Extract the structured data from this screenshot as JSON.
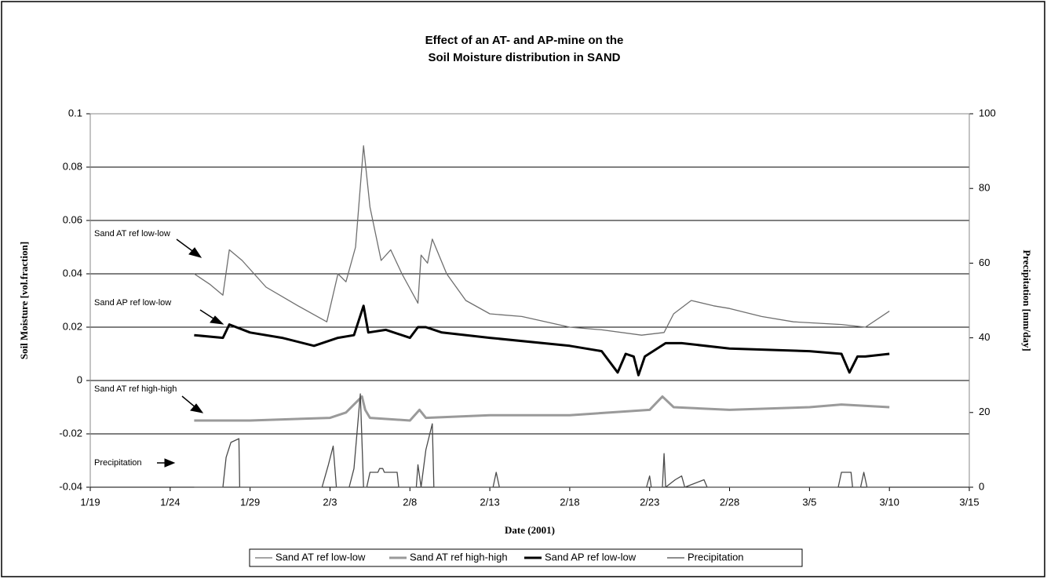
{
  "chart_data": {
    "type": "line",
    "title": [
      "Effect of an AT- and AP-mine on the",
      "Soil Moisture distribution in SAND"
    ],
    "x_label": "Date (2001)",
    "y_label": "Soil Moisture [vol.fraction]",
    "y2_label": "Precipitation [mm/day]",
    "xlim": [
      0,
      55
    ],
    "xticks": [
      {
        "value": 0,
        "label": "1/19"
      },
      {
        "value": 5,
        "label": "1/24"
      },
      {
        "value": 10,
        "label": "1/29"
      },
      {
        "value": 15,
        "label": "2/3"
      },
      {
        "value": 20,
        "label": "2/8"
      },
      {
        "value": 25,
        "label": "2/13"
      },
      {
        "value": 30,
        "label": "2/18"
      },
      {
        "value": 35,
        "label": "2/23"
      },
      {
        "value": 40,
        "label": "2/28"
      },
      {
        "value": 45,
        "label": "3/5"
      },
      {
        "value": 50,
        "label": "3/10"
      },
      {
        "value": 55,
        "label": "3/15"
      }
    ],
    "ylim": [
      -0.04,
      0.1
    ],
    "yticks": [
      -0.04,
      -0.02,
      0,
      0.02,
      0.04,
      0.06,
      0.08,
      0.1
    ],
    "y2lim": [
      0,
      100
    ],
    "y2ticks": [
      0,
      20,
      40,
      60,
      80,
      100
    ],
    "grid": true,
    "series": [
      {
        "name": "Sand AT ref low-low",
        "color": "#6f6f6f",
        "width": 1.3,
        "x": [
          6.5,
          7.5,
          8.3,
          8.7,
          9.5,
          11,
          13,
          14.8,
          15.5,
          16,
          16.6,
          17.1,
          17.5,
          18.2,
          18.8,
          19.5,
          20.5,
          20.7,
          21.1,
          21.4,
          22.3,
          23.5,
          25,
          27,
          30,
          32,
          34.5,
          35.9,
          36.5,
          37.6,
          39,
          40,
          42,
          44,
          47,
          48.5,
          50
        ],
        "values": [
          0.04,
          0.036,
          0.032,
          0.049,
          0.045,
          0.035,
          0.028,
          0.022,
          0.04,
          0.037,
          0.05,
          0.088,
          0.065,
          0.045,
          0.049,
          0.04,
          0.029,
          0.047,
          0.044,
          0.053,
          0.04,
          0.03,
          0.025,
          0.024,
          0.02,
          0.019,
          0.017,
          0.018,
          0.025,
          0.03,
          0.028,
          0.027,
          0.024,
          0.022,
          0.021,
          0.02,
          0.026
        ]
      },
      {
        "name": "Sand AT ref high-high",
        "color": "#9a9a9a",
        "width": 3,
        "x": [
          6.5,
          10,
          15,
          16,
          17,
          17.2,
          17.5,
          20,
          20.6,
          21,
          25,
          30,
          35,
          35.8,
          36.5,
          40,
          45,
          47,
          50
        ],
        "values": [
          -0.015,
          -0.015,
          -0.014,
          -0.012,
          -0.006,
          -0.011,
          -0.014,
          -0.015,
          -0.011,
          -0.014,
          -0.013,
          -0.013,
          -0.011,
          -0.006,
          -0.01,
          -0.011,
          -0.01,
          -0.009,
          -0.01
        ]
      },
      {
        "name": "Sand AP ref low-low",
        "color": "#000000",
        "width": 3,
        "x": [
          6.5,
          8.3,
          8.7,
          10,
          12,
          14,
          15.5,
          16.5,
          17.1,
          17.4,
          18.5,
          20,
          20.5,
          21,
          22,
          25,
          30,
          32,
          33,
          33.5,
          34,
          34.3,
          34.7,
          36,
          37,
          40,
          45,
          47,
          47.5,
          48,
          48.5,
          50
        ],
        "values": [
          0.017,
          0.016,
          0.021,
          0.018,
          0.016,
          0.013,
          0.016,
          0.017,
          0.028,
          0.018,
          0.019,
          0.016,
          0.02,
          0.02,
          0.018,
          0.016,
          0.013,
          0.011,
          0.003,
          0.01,
          0.009,
          0.002,
          0.009,
          0.014,
          0.014,
          0.012,
          0.011,
          0.01,
          0.003,
          0.009,
          0.009,
          0.01
        ]
      },
      {
        "name": "Precipitation",
        "color": "#4a4a4a",
        "width": 1.3,
        "axis": "y2",
        "x": [
          6.5,
          8.3,
          8.5,
          8.8,
          9.3,
          9.35,
          14.5,
          14.9,
          15.2,
          15.4,
          16.2,
          16.5,
          16.9,
          17.1,
          17.3,
          17.5,
          18.0,
          18.1,
          18.3,
          18.4,
          19.2,
          19.3,
          20.4,
          20.5,
          20.7,
          21.0,
          21.4,
          21.5,
          25.2,
          25.4,
          25.6,
          34.8,
          35.0,
          35.1,
          35.8,
          35.9,
          36.0,
          36.6,
          37.0,
          37.2,
          38.4,
          38.6,
          46.8,
          47.0,
          47.6,
          47.7,
          48.2,
          48.4,
          48.6,
          50
        ],
        "values": [
          0,
          0,
          8,
          12,
          13,
          0,
          0,
          6,
          11,
          0,
          0,
          5,
          25,
          0,
          0,
          4,
          4,
          5,
          5,
          4,
          4,
          0,
          0,
          6,
          0,
          10,
          17,
          0,
          0,
          4,
          0,
          0,
          3,
          0,
          0,
          9,
          0,
          2,
          3,
          0,
          2,
          0,
          0,
          4,
          4,
          0,
          0,
          4,
          0,
          0
        ]
      }
    ],
    "annotations": [
      "Sand AT ref low-low",
      "Sand AP ref low-low",
      "Sand AT ref high-high",
      "Precipitation"
    ]
  }
}
